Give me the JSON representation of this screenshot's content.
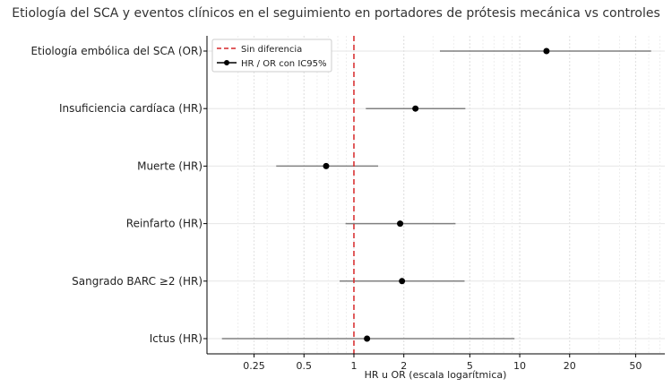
{
  "chart_data": {
    "type": "forest",
    "title": "Etiología del SCA y eventos clínicos en el seguimiento en portadores de prótesis mecánica vs controles",
    "xlabel": "HR u OR (escala logarítmica)",
    "xscale": "log",
    "xlim": [
      0.13,
      75
    ],
    "xticks": [
      0.25,
      0.5,
      1,
      2,
      5,
      10,
      20,
      50
    ],
    "xtick_labels": [
      "0.25",
      "0.5",
      "1",
      "2",
      "5",
      "10",
      "20",
      "50"
    ],
    "grid": true,
    "reference_line": {
      "x": 1,
      "label": "Sin diferencia",
      "color": "#d62728",
      "style": "dashed"
    },
    "legend": {
      "placement": "top-left",
      "entries": [
        "Sin diferencia",
        "HR / OR con IC95%"
      ]
    },
    "series": [
      {
        "name": "HR / OR con IC95%",
        "points": [
          {
            "label": "Etiología embólica del SCA (OR)",
            "estimate": 14.5,
            "lower": 3.3,
            "upper": 62
          },
          {
            "label": "Insuficiencia cardíaca (HR)",
            "estimate": 2.35,
            "lower": 1.18,
            "upper": 4.7
          },
          {
            "label": "Muerte (HR)",
            "estimate": 0.68,
            "lower": 0.34,
            "upper": 1.4
          },
          {
            "label": "Reinfarto (HR)",
            "estimate": 1.9,
            "lower": 0.89,
            "upper": 4.1
          },
          {
            "label": "Sangrado BARC ≥2 (HR)",
            "estimate": 1.95,
            "lower": 0.82,
            "upper": 4.65
          },
          {
            "label": "Ictus (HR)",
            "estimate": 1.2,
            "lower": 0.16,
            "upper": 9.3
          }
        ]
      }
    ],
    "colors": {
      "point": "#000000",
      "ci": "#808080",
      "reference": "#d62728",
      "grid": "#e6e6e6"
    }
  }
}
